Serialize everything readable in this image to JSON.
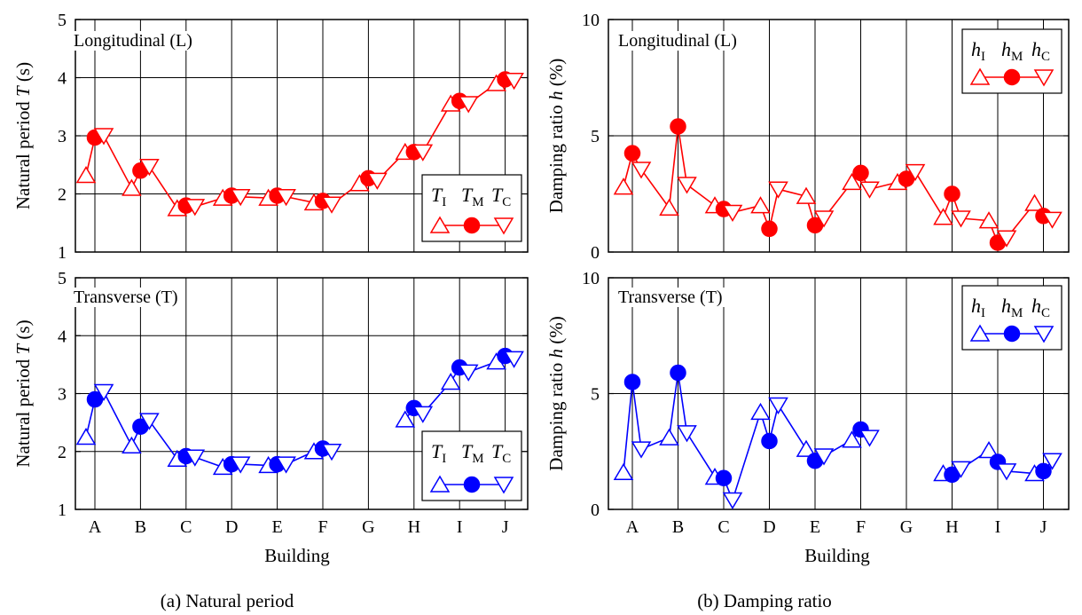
{
  "colors": {
    "L": "#ff0000",
    "T": "#0000ff",
    "grid": "#000000",
    "axis": "#000000"
  },
  "buildings": [
    "A",
    "B",
    "C",
    "D",
    "E",
    "F",
    "G",
    "H",
    "I",
    "J"
  ],
  "xlabel": "Building",
  "captions": {
    "a": "(a) Natural period",
    "b": "(b) Damping ratio"
  },
  "chart_data": [
    {
      "id": "period-L",
      "type": "line",
      "title": "Longitudinal (L)",
      "ylabel": "Natural period T (s)",
      "ylim": [
        1,
        5
      ],
      "yticks": [
        1,
        2,
        3,
        4,
        5
      ],
      "grid": true,
      "legend": {
        "placement": "right-middle",
        "labels": [
          "T",
          "I",
          "T",
          "M",
          "T",
          "C"
        ]
      },
      "categories": [
        "A",
        "B",
        "C",
        "D",
        "E",
        "F",
        "G",
        "H",
        "I",
        "J"
      ],
      "series": [
        {
          "marker": "triangle-up",
          "values": [
            2.32,
            2.1,
            1.75,
            1.93,
            1.93,
            1.85,
            2.18,
            2.72,
            3.55,
            3.9
          ]
        },
        {
          "marker": "circle",
          "values": [
            2.97,
            2.4,
            1.8,
            1.97,
            1.97,
            1.88,
            2.27,
            2.72,
            3.6,
            3.97
          ]
        },
        {
          "marker": "triangle-down",
          "values": [
            3.0,
            2.47,
            1.78,
            1.95,
            1.95,
            1.82,
            2.23,
            2.72,
            3.55,
            3.95
          ]
        }
      ]
    },
    {
      "id": "damping-L",
      "type": "line",
      "title": "Longitudinal (L)",
      "ylabel": "Damping ratio h (%)",
      "ylim": [
        0,
        10
      ],
      "yticks": [
        0,
        5,
        10
      ],
      "grid": true,
      "legend": {
        "placement": "top-right",
        "labels": [
          "h",
          "I",
          "h",
          "M",
          "h",
          "C"
        ]
      },
      "categories": [
        "A",
        "B",
        "C",
        "D",
        "E",
        "F",
        "G",
        "H",
        "I",
        "J"
      ],
      "series": [
        {
          "marker": "triangle-up",
          "values": [
            2.8,
            1.9,
            2.0,
            2.0,
            2.4,
            3.0,
            3.0,
            1.5,
            1.35,
            2.1
          ]
        },
        {
          "marker": "circle",
          "values": [
            4.25,
            5.4,
            1.85,
            1.0,
            1.15,
            3.4,
            3.15,
            2.5,
            0.4,
            1.55
          ]
        },
        {
          "marker": "triangle-down",
          "values": [
            3.55,
            2.9,
            1.7,
            2.7,
            1.45,
            2.7,
            3.45,
            1.45,
            0.6,
            1.4
          ]
        }
      ]
    },
    {
      "id": "period-T",
      "type": "line",
      "title": "Transverse (T)",
      "ylabel": "Natural period T (s)",
      "ylim": [
        1,
        5
      ],
      "yticks": [
        1,
        2,
        3,
        4,
        5
      ],
      "grid": true,
      "legend": {
        "placement": "bottom-right",
        "labels": [
          "T",
          "I",
          "T",
          "M",
          "T",
          "C"
        ]
      },
      "categories": [
        "A",
        "B",
        "C",
        "D",
        "E",
        "F",
        "G",
        "H",
        "I",
        "J"
      ],
      "series": [
        {
          "marker": "triangle-up",
          "values": [
            2.25,
            2.1,
            1.87,
            1.73,
            1.76,
            2.0,
            null,
            2.55,
            3.2,
            3.55
          ]
        },
        {
          "marker": "circle",
          "values": [
            2.9,
            2.43,
            1.92,
            1.78,
            1.78,
            2.05,
            null,
            2.75,
            3.45,
            3.65
          ]
        },
        {
          "marker": "triangle-down",
          "values": [
            3.03,
            2.53,
            1.9,
            1.78,
            1.78,
            2.0,
            null,
            2.65,
            3.37,
            3.6
          ]
        }
      ]
    },
    {
      "id": "damping-T",
      "type": "line",
      "title": "Transverse (T)",
      "ylabel": "Damping ratio h (%)",
      "ylim": [
        0,
        10
      ],
      "yticks": [
        0,
        5,
        10
      ],
      "grid": true,
      "legend": {
        "placement": "top-right",
        "labels": [
          "h",
          "I",
          "h",
          "M",
          "h",
          "C"
        ]
      },
      "categories": [
        "A",
        "B",
        "C",
        "D",
        "E",
        "F",
        "G",
        "H",
        "I",
        "J"
      ],
      "series": [
        {
          "marker": "triangle-up",
          "values": [
            1.6,
            3.1,
            1.4,
            4.2,
            2.6,
            3.0,
            null,
            1.55,
            2.55,
            1.55
          ]
        },
        {
          "marker": "circle",
          "values": [
            5.5,
            5.9,
            1.35,
            2.95,
            2.1,
            3.45,
            null,
            1.5,
            2.05,
            1.65
          ]
        },
        {
          "marker": "triangle-down",
          "values": [
            2.6,
            3.3,
            0.4,
            4.5,
            2.3,
            3.1,
            null,
            1.75,
            1.65,
            2.1
          ]
        }
      ]
    }
  ]
}
